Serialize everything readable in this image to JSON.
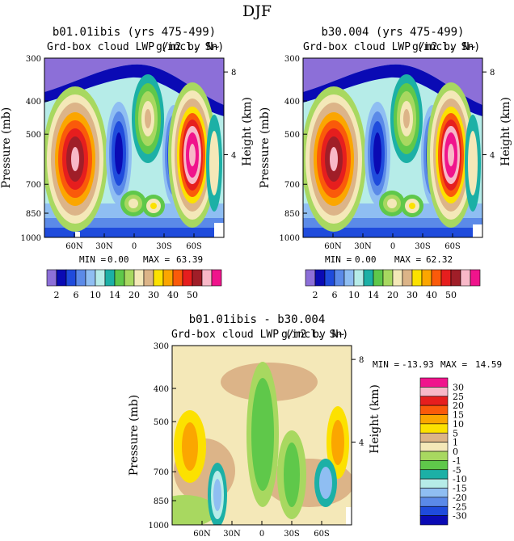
{
  "suptitle": "DJF",
  "palette_top": [
    "#8c6fd8",
    "#0a0ab4",
    "#1f4bdc",
    "#5b8ae8",
    "#8fbef2",
    "#b6ece8",
    "#1cb0a6",
    "#5fc84a",
    "#a8d860",
    "#f4e8b8",
    "#dcb488",
    "#fce100",
    "#fba600",
    "#fa5a0a",
    "#e61e1e",
    "#a01e28",
    "#f8b8c8",
    "#f0148c"
  ],
  "palette_diff": [
    "#8c6fd8",
    "#0a0ab4",
    "#1f4bdc",
    "#5b8ae8",
    "#8fbef2",
    "#b6ece8",
    "#1cb0a6",
    "#5fc84a",
    "#a8d860",
    "#f4e8b8",
    "#dcb488",
    "#fce100",
    "#fba600",
    "#fa5a0a",
    "#e61e1e",
    "#a01e28",
    "#f8b8c8",
    "#f0148c"
  ],
  "panels": {
    "p1": {
      "title": "b01.01ibis (yrs 475-499)",
      "subtitle": "Grd-box cloud LWP (incl. Sn)",
      "unit": "g/m2 by N~",
      "min_label": "MIN =",
      "min_value": "0.00",
      "max_label": "MAX =",
      "max_value": "63.39"
    },
    "p2": {
      "title": "b30.004 (yrs 475-499)",
      "subtitle": "Grd-box cloud LWP (incl. Sn)",
      "unit": "g/m2 by N~",
      "min_label": "MIN =",
      "min_value": "0.00",
      "max_label": "MAX =",
      "max_value": "62.32"
    },
    "p3": {
      "title": "b01.01ibis - b30.004",
      "subtitle": "Grd-box cloud LWP (incl. Sn)",
      "unit": "g/m2 by N~",
      "min_label": "MIN =",
      "min_value": "-13.93",
      "max_label": "MAX =",
      "max_value": "14.59"
    }
  },
  "chart_data": [
    {
      "type": "heatmap",
      "title": "b01.01ibis (yrs 475-499)",
      "subtitle": "Grd-box cloud LWP (incl. Sn)",
      "xlabel": "",
      "ylabel": "Pressure (mb)",
      "y2label": "Height (km)",
      "x_ticks": [
        "60N",
        "30N",
        "0",
        "30S",
        "60S"
      ],
      "y_ticks": [
        "300",
        "400",
        "500",
        "700",
        "850",
        "1000"
      ],
      "y2_ticks": [
        "8",
        "4"
      ],
      "levels": [
        2,
        4,
        6,
        8,
        10,
        12,
        14,
        16,
        20,
        25,
        30,
        35,
        40,
        45,
        50,
        55
      ],
      "colorbar_labels": [
        "2",
        "6",
        "10",
        "14",
        "20",
        "30",
        "40",
        "50"
      ],
      "min": 0.0,
      "max": 63.39,
      "features": [
        {
          "lat": 60,
          "p": 720,
          "value": 45
        },
        {
          "lat": 10,
          "p": 860,
          "value": 14
        },
        {
          "lat": 40,
          "p": 740,
          "value": 8
        },
        {
          "lat": -10,
          "p": 530,
          "value": 18
        },
        {
          "lat": -65,
          "p": 740,
          "value": 55
        }
      ]
    },
    {
      "type": "heatmap",
      "title": "b30.004 (yrs 475-499)",
      "subtitle": "Grd-box cloud LWP (incl. Sn)",
      "xlabel": "",
      "ylabel": "Pressure (mb)",
      "y2label": "Height (km)",
      "x_ticks": [
        "60N",
        "30N",
        "0",
        "30S",
        "60S"
      ],
      "y_ticks": [
        "300",
        "400",
        "500",
        "700",
        "850",
        "1000"
      ],
      "y2_ticks": [
        "8",
        "4"
      ],
      "levels": [
        2,
        4,
        6,
        8,
        10,
        12,
        14,
        16,
        20,
        25,
        30,
        35,
        40,
        45,
        50,
        55
      ],
      "colorbar_labels": [
        "2",
        "6",
        "10",
        "14",
        "20",
        "30",
        "40",
        "50"
      ],
      "min": 0.0,
      "max": 62.32,
      "features": [
        {
          "lat": 60,
          "p": 720,
          "value": 45
        },
        {
          "lat": 10,
          "p": 860,
          "value": 14
        },
        {
          "lat": 40,
          "p": 740,
          "value": 8
        },
        {
          "lat": -10,
          "p": 530,
          "value": 18
        },
        {
          "lat": -65,
          "p": 720,
          "value": 52
        }
      ]
    },
    {
      "type": "heatmap",
      "title": "b01.01ibis - b30.004",
      "subtitle": "Grd-box cloud LWP (incl. Sn)",
      "xlabel": "",
      "ylabel": "Pressure (mb)",
      "y2label": "Height (km)",
      "x_ticks": [
        "60N",
        "30N",
        "0",
        "30S",
        "60S"
      ],
      "y_ticks": [
        "300",
        "400",
        "500",
        "700",
        "850",
        "1000"
      ],
      "y2_ticks": [
        "8",
        "4"
      ],
      "levels": [
        -30,
        -25,
        -20,
        -15,
        -10,
        -5,
        -1,
        0,
        1,
        5,
        10,
        15,
        20,
        25,
        30
      ],
      "colorbar_labels": [
        "30",
        "25",
        "20",
        "15",
        "10",
        "5",
        "1",
        "0",
        "-1",
        "-5",
        "-10",
        "-15",
        "-20",
        "-25",
        "-30"
      ],
      "min": -13.93,
      "max": 14.59,
      "features": [
        {
          "lat": 72,
          "p": 580,
          "value": 9
        },
        {
          "lat": 52,
          "p": 800,
          "value": -8
        },
        {
          "lat": 15,
          "p": 640,
          "value": -4
        },
        {
          "lat": -20,
          "p": 600,
          "value": -3
        },
        {
          "lat": -72,
          "p": 700,
          "value": 10
        }
      ]
    }
  ]
}
